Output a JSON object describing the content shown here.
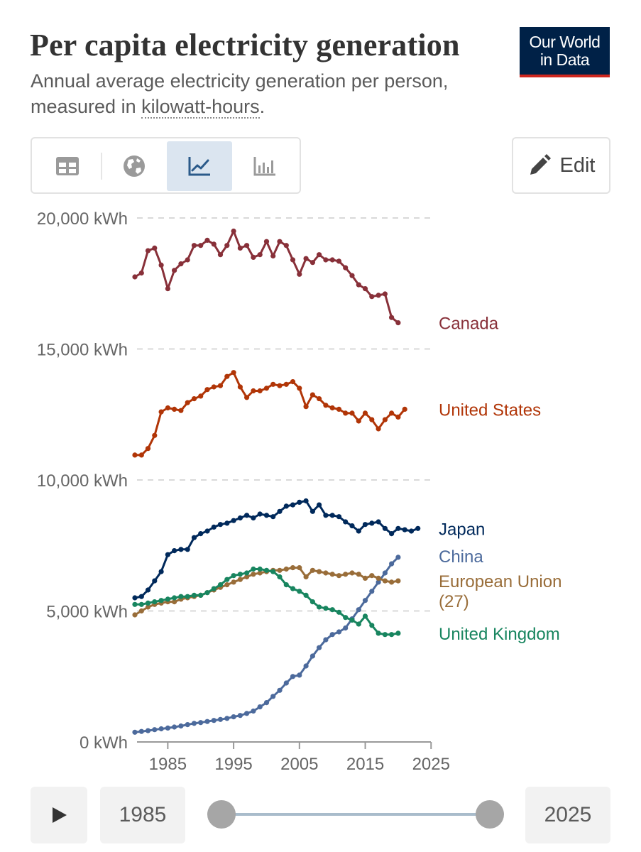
{
  "header": {
    "title": "Per capita electricity generation",
    "subtitle_pre": "Annual average electricity generation per person, measured in ",
    "subtitle_link": "kilowatt-hours",
    "subtitle_post": "."
  },
  "logo": {
    "line1": "Our World",
    "line2": "in Data"
  },
  "tabs": [
    {
      "name": "table",
      "icon": "table-icon"
    },
    {
      "name": "map",
      "icon": "globe-icon"
    },
    {
      "name": "chart",
      "icon": "line-chart-icon",
      "active": true
    },
    {
      "name": "bar",
      "icon": "bar-chart-icon"
    }
  ],
  "edit": {
    "label": "Edit",
    "icon": "pencil-icon"
  },
  "timeline": {
    "start_year": "1985",
    "end_year": "2025"
  },
  "chart_data": {
    "type": "line",
    "title": "Per capita electricity generation",
    "ylabel": "kWh",
    "xlim": [
      1980,
      2024
    ],
    "ylim": [
      0,
      20000
    ],
    "grid": true,
    "y_ticks": [
      {
        "value": 0,
        "label": "0 kWh"
      },
      {
        "value": 5000,
        "label": "5,000 kWh"
      },
      {
        "value": 10000,
        "label": "10,000 kWh"
      },
      {
        "value": 15000,
        "label": "15,000 kWh"
      },
      {
        "value": 20000,
        "label": "20,000 kWh"
      }
    ],
    "x_ticks": [
      {
        "value": 1985,
        "label": "1985"
      },
      {
        "value": 1995,
        "label": "1995"
      },
      {
        "value": 2005,
        "label": "2005"
      },
      {
        "value": 2015,
        "label": "2015"
      },
      {
        "value": 2025,
        "label": "2025"
      }
    ],
    "start_year": 1980,
    "series": [
      {
        "name": "Canada",
        "color": "#883039",
        "label_value": 16000,
        "label_lines": [
          "Canada"
        ],
        "values": [
          17750,
          17900,
          18750,
          18850,
          18200,
          17300,
          18000,
          18250,
          18400,
          18950,
          18950,
          19150,
          19000,
          18600,
          18950,
          19500,
          18850,
          18950,
          18500,
          18600,
          19100,
          18550,
          19100,
          18950,
          18400,
          17850,
          18450,
          18300,
          18600,
          18400,
          18400,
          18350,
          18100,
          17800,
          17450,
          17300,
          17000,
          17050,
          17100,
          16200,
          16000
        ]
      },
      {
        "name": "United States",
        "color": "#b13507",
        "label_value": 12700,
        "label_lines": [
          "United States"
        ],
        "values": [
          10950,
          10950,
          11200,
          11700,
          12600,
          12750,
          12700,
          12650,
          12950,
          13100,
          13200,
          13450,
          13550,
          13600,
          13950,
          14100,
          13550,
          13150,
          13400,
          13400,
          13500,
          13650,
          13600,
          13650,
          13750,
          13500,
          12800,
          13250,
          13100,
          12850,
          12750,
          12700,
          12550,
          12550,
          12250,
          12550,
          12300,
          11950,
          12300,
          12550,
          12400,
          12700
        ]
      },
      {
        "name": "Japan",
        "color": "#00295b",
        "label_value": 8150,
        "label_lines": [
          "Japan"
        ],
        "values": [
          5500,
          5550,
          5800,
          6150,
          6500,
          7150,
          7300,
          7350,
          7350,
          7800,
          7950,
          8050,
          8200,
          8300,
          8350,
          8450,
          8550,
          8650,
          8550,
          8700,
          8650,
          8600,
          8800,
          9000,
          9050,
          9150,
          9200,
          8800,
          9050,
          8650,
          8650,
          8600,
          8400,
          8250,
          8050,
          8300,
          8350,
          8400,
          8150,
          7950,
          8150,
          8100,
          8050,
          8150
        ]
      },
      {
        "name": "China",
        "color": "#4c6a9c",
        "label_value": 7100,
        "label_lines": [
          "China"
        ],
        "values": [
          370,
          400,
          430,
          470,
          500,
          530,
          570,
          610,
          660,
          710,
          740,
          780,
          820,
          860,
          900,
          960,
          1010,
          1090,
          1180,
          1340,
          1500,
          1740,
          1970,
          2250,
          2500,
          2550,
          2900,
          3280,
          3600,
          3900,
          4100,
          4200,
          4350,
          4700,
          5050,
          5400,
          5750,
          6100,
          6450,
          6800,
          7050
        ]
      },
      {
        "name": "European Union (27)",
        "color": "#996d39",
        "label_value": 6150,
        "label_lines": [
          "European Union",
          "(27)"
        ],
        "values": [
          4850,
          5000,
          5150,
          5250,
          5300,
          5350,
          5350,
          5450,
          5500,
          5550,
          5600,
          5700,
          5800,
          5900,
          6000,
          6100,
          6200,
          6300,
          6400,
          6450,
          6500,
          6550,
          6550,
          6600,
          6650,
          6650,
          6300,
          6550,
          6500,
          6450,
          6400,
          6350,
          6400,
          6450,
          6400,
          6250,
          6350,
          6250,
          6150,
          6100,
          6150
        ]
      },
      {
        "name": "United Kingdom",
        "color": "#18855f",
        "label_value": 4150,
        "label_lines": [
          "United Kingdom"
        ],
        "values": [
          5250,
          5250,
          5300,
          5350,
          5400,
          5450,
          5500,
          5550,
          5550,
          5600,
          5600,
          5700,
          5850,
          6000,
          6200,
          6350,
          6400,
          6450,
          6600,
          6600,
          6550,
          6500,
          6300,
          6000,
          5850,
          5750,
          5600,
          5350,
          5150,
          5100,
          5050,
          4950,
          4750,
          4650,
          4500,
          4800,
          4450,
          4150,
          4100,
          4100,
          4150
        ]
      }
    ]
  }
}
